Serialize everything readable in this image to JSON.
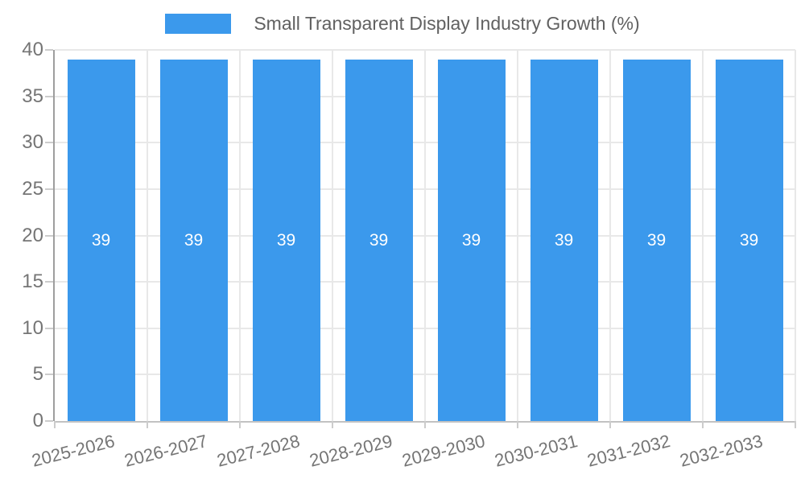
{
  "legend": {
    "label": "Small Transparent Display Industry Growth (%)"
  },
  "chart_data": {
    "type": "bar",
    "title": "Small Transparent Display Industry Growth (%)",
    "categories": [
      "2025-2026",
      "2026-2027",
      "2027-2028",
      "2028-2029",
      "2029-2030",
      "2030-2031",
      "2031-2032",
      "2032-2033"
    ],
    "values": [
      39,
      39,
      39,
      39,
      39,
      39,
      39,
      39
    ],
    "bar_labels": [
      "39",
      "39",
      "39",
      "39",
      "39",
      "39",
      "39",
      "39"
    ],
    "xlabel": "",
    "ylabel": "",
    "ylim": [
      0,
      40
    ],
    "y_ticks": [
      0,
      5,
      10,
      15,
      20,
      25,
      30,
      35,
      40
    ],
    "grid": true,
    "legend_position": "top"
  },
  "colors": {
    "bar": "#3B99EC",
    "bar_label": "#FFFFFF",
    "gridline": "#E8E8E8",
    "axis_y_line": "#9E9E9E",
    "axis_x_line": "#C2C2C2",
    "tick_mark": "#CCCCCC",
    "tick_text": "#757575",
    "legend_text": "#616161",
    "background": "#FFFFFF"
  }
}
